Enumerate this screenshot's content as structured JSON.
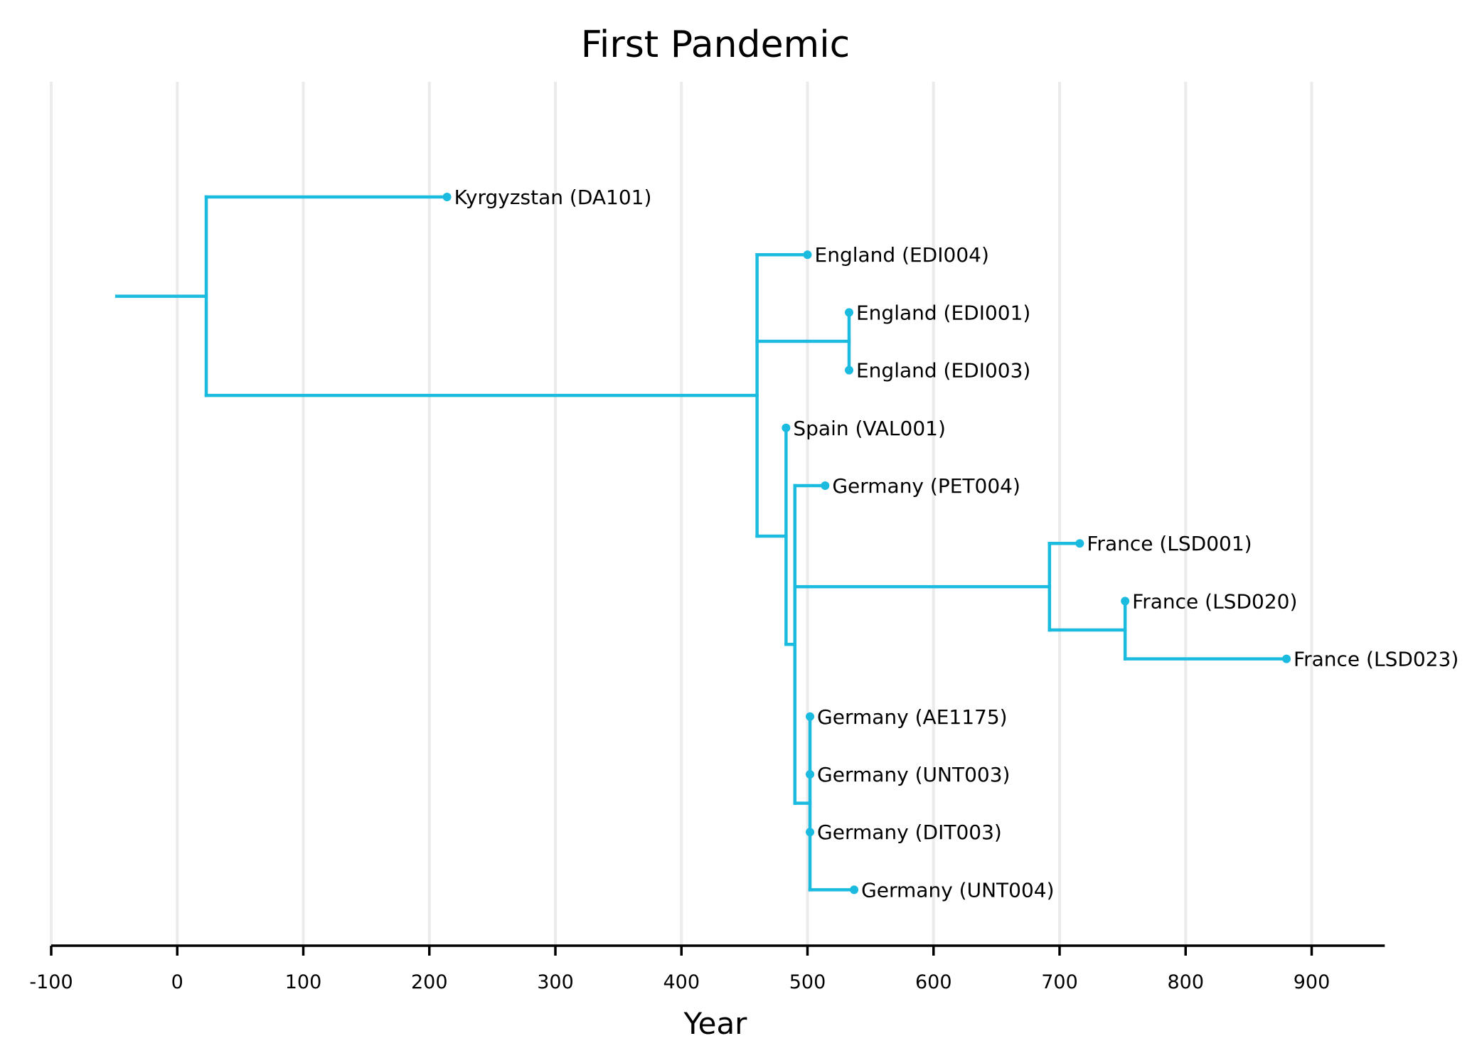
{
  "chart_data": {
    "type": "dendrogram",
    "title": "First Pandemic",
    "xlabel": "Year",
    "xlim": [
      -100,
      958
    ],
    "xticks": [
      -100,
      0,
      100,
      200,
      300,
      400,
      500,
      600,
      700,
      800,
      900
    ],
    "grid": "vertical",
    "color": "#1bbbe0",
    "tree": {
      "id": "root",
      "x": 23,
      "root_stub_x": -48,
      "children": [
        {
          "id": "kyr",
          "label": "Kyrgyzstan (DA101)",
          "x": 214
        },
        {
          "id": "n1",
          "x": 460,
          "children": [
            {
              "id": "edi004",
              "label": "England (EDI004)",
              "x": 500
            },
            {
              "id": "n2",
              "x": 533,
              "children": [
                {
                  "id": "edi001",
                  "label": "England (EDI001)",
                  "x": 533
                },
                {
                  "id": "edi003",
                  "label": "England (EDI003)",
                  "x": 533
                }
              ]
            },
            {
              "id": "n3",
              "x": 483,
              "children": [
                {
                  "id": "val001",
                  "label": "Spain (VAL001)",
                  "x": 483
                },
                {
                  "id": "n4",
                  "x": 490,
                  "children": [
                    {
                      "id": "pet004",
                      "label": "Germany (PET004)",
                      "x": 514
                    },
                    {
                      "id": "n5",
                      "x": 692,
                      "children": [
                        {
                          "id": "lsd001",
                          "label": "France (LSD001)",
                          "x": 716
                        },
                        {
                          "id": "n6",
                          "x": 752,
                          "children": [
                            {
                              "id": "lsd020",
                              "label": "France (LSD020)",
                              "x": 752
                            },
                            {
                              "id": "lsd023",
                              "label": "France (LSD023)",
                              "x": 880
                            }
                          ]
                        }
                      ]
                    },
                    {
                      "id": "n7",
                      "x": 502,
                      "children": [
                        {
                          "id": "ae1175",
                          "label": "Germany (AE1175)",
                          "x": 502
                        },
                        {
                          "id": "unt003",
                          "label": "Germany (UNT003)",
                          "x": 502
                        },
                        {
                          "id": "dit003",
                          "label": "Germany (DIT003)",
                          "x": 502
                        },
                        {
                          "id": "unt004",
                          "label": "Germany (UNT004)",
                          "x": 537
                        }
                      ]
                    }
                  ]
                }
              ]
            }
          ]
        }
      ]
    }
  }
}
